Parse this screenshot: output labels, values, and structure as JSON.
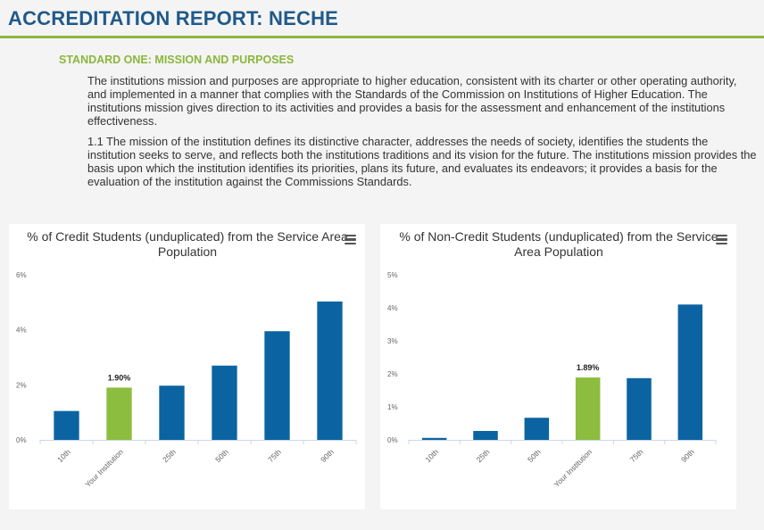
{
  "header": {
    "title": "ACCREDITATION REPORT: NECHE"
  },
  "standard": {
    "title": "STANDARD ONE: MISSION AND PURPOSES",
    "paragraphs": [
      "The institutions mission and purposes are appropriate to higher education, consistent with its charter or other operating authority, and implemented in a manner that complies with the Standards of the Commission on Institutions of Higher Education. The institutions mission gives direction to its activities and provides a basis for the assessment and enhancement of the institutions effectiveness.",
      "1.1 The mission of the institution defines its distinctive character, addresses the needs of society, identifies the students the institution seeks to serve, and reflects both the institutions traditions and its vision for the future. The institutions mission provides the basis upon which the institution identifies its priorities, plans its future, and evaluates its endeavors; it provides a basis for the evaluation of the institution against the Commissions Standards."
    ]
  },
  "colors": {
    "default_bar": "#0b64a1",
    "highlight_bar": "#8cbd3f",
    "accent_line": "#8cb63c",
    "title": "#1f5a8a"
  },
  "chart_data": [
    {
      "type": "bar",
      "title": "% of Credit Students (unduplicated) from the Service Area Population",
      "categories": [
        "10th",
        "Your Institution",
        "25th",
        "50th",
        "75th",
        "90th"
      ],
      "values": [
        1.05,
        1.9,
        1.97,
        2.7,
        3.95,
        5.03
      ],
      "highlight_index": 1,
      "highlight_label": "1.90%",
      "ylim": [
        0,
        6
      ],
      "yticks": [
        0,
        2,
        4,
        6
      ],
      "ytick_labels": [
        "0%",
        "2%",
        "4%",
        "6%"
      ],
      "grid": false,
      "menu_icon": "hamburger-menu-icon"
    },
    {
      "type": "bar",
      "title": "% of Non-Credit Students (unduplicated) from the Service Area Population",
      "categories": [
        "10th",
        "25th",
        "50th",
        "Your Institution",
        "75th",
        "90th"
      ],
      "values": [
        0.06,
        0.27,
        0.67,
        1.89,
        1.87,
        4.1
      ],
      "highlight_index": 3,
      "highlight_label": "1.89%",
      "ylim": [
        0,
        5
      ],
      "yticks": [
        0,
        1,
        2,
        3,
        4,
        5
      ],
      "ytick_labels": [
        "0%",
        "1%",
        "2%",
        "3%",
        "4%",
        "5%"
      ],
      "grid": false,
      "menu_icon": "hamburger-menu-icon"
    }
  ]
}
